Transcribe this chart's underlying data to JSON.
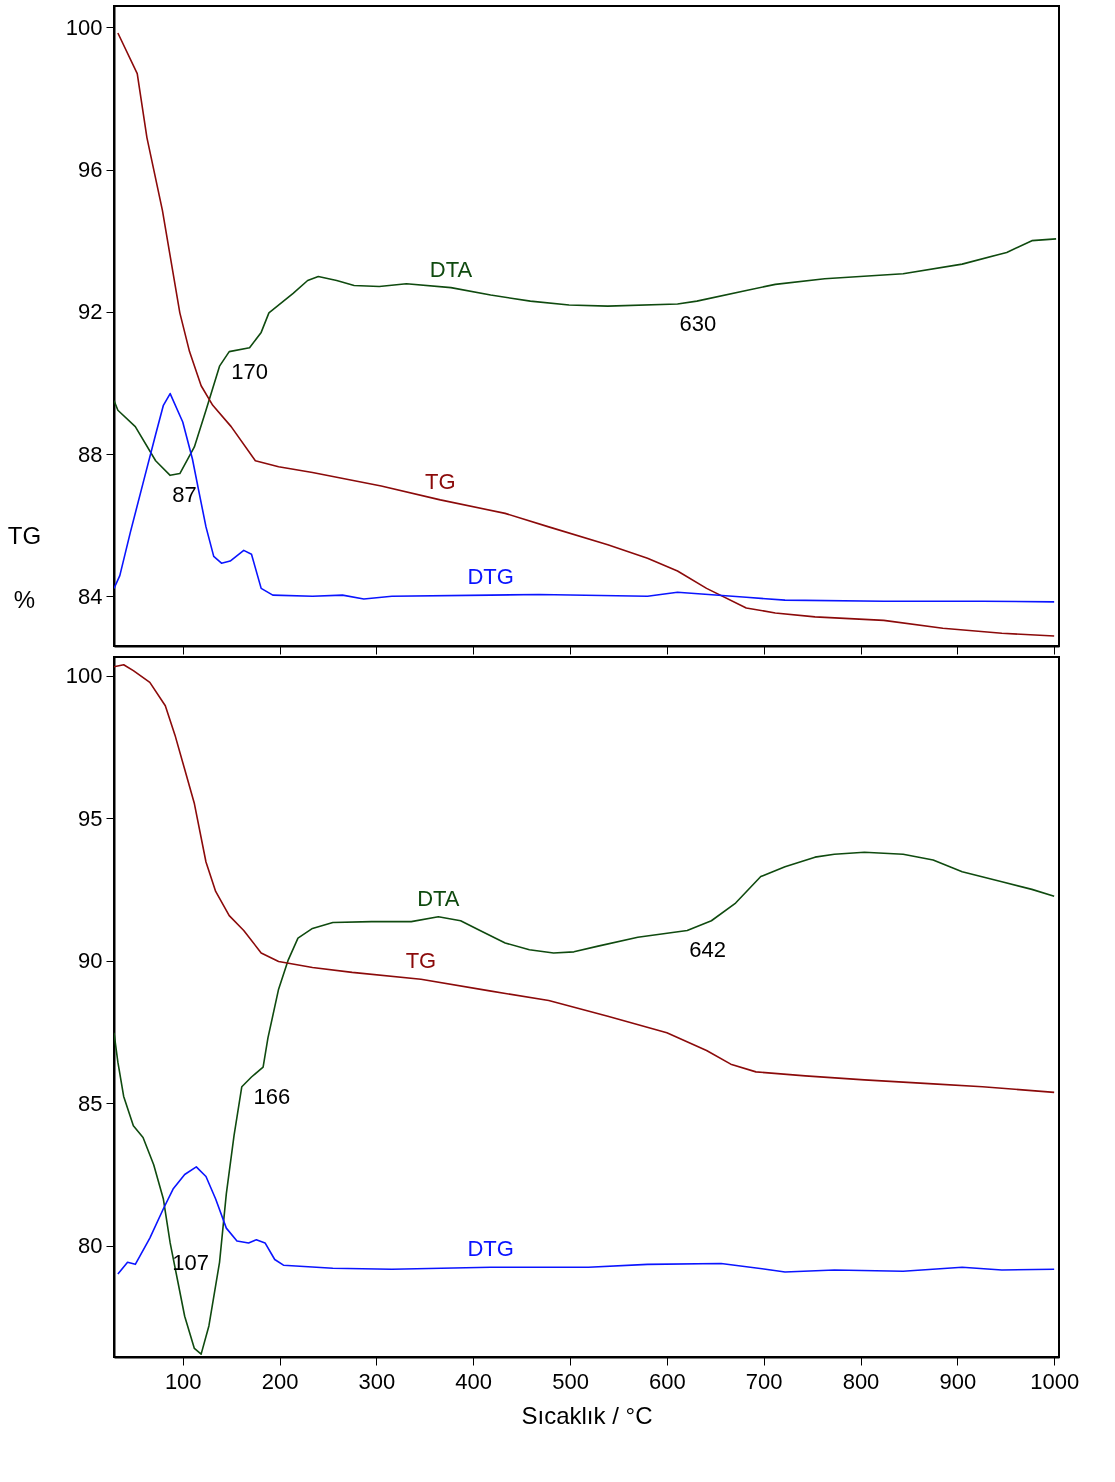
{
  "chart_data": [
    {
      "type": "line",
      "ylabel": "TG %",
      "xlim": [
        29,
        1005
      ],
      "ylim": [
        82.6,
        100.6
      ],
      "xticks": [
        100,
        200,
        300,
        400,
        500,
        600,
        700,
        800,
        900,
        1000
      ],
      "yticks": [
        84,
        88,
        92,
        96,
        100
      ],
      "tick_labels": "y",
      "series": [
        {
          "name": "DTA",
          "color": "#0f4a0f",
          "x": [
            29,
            33,
            51,
            72,
            87,
            97,
            112,
            124,
            138,
            148,
            169,
            181,
            189,
            214,
            229,
            240,
            259,
            277,
            303,
            331,
            377,
            418,
            459,
            499,
            539,
            611,
            631,
            682,
            712,
            763,
            844,
            905,
            951,
            977,
            1002
          ],
          "values": [
            89.5,
            89.23,
            88.77,
            87.81,
            87.4,
            87.45,
            88.2,
            89.23,
            90.47,
            90.88,
            90.99,
            91.42,
            91.97,
            92.52,
            92.88,
            92.99,
            92.88,
            92.74,
            92.71,
            92.79,
            92.68,
            92.47,
            92.3,
            92.19,
            92.16,
            92.22,
            92.3,
            92.6,
            92.77,
            92.93,
            93.07,
            93.34,
            93.67,
            94.0,
            94.05
          ]
        },
        {
          "name": "TG",
          "color": "#8b0a0a",
          "x": [
            33,
            53,
            63,
            79,
            97,
            107,
            119,
            131,
            150,
            175,
            199,
            234,
            305,
            366,
            433,
            478,
            539,
            580,
            611,
            641,
            682,
            712,
            753,
            824,
            885,
            946,
            1000
          ],
          "values": [
            99.84,
            98.7,
            96.9,
            94.85,
            91.97,
            90.88,
            89.92,
            89.37,
            88.77,
            87.81,
            87.64,
            87.48,
            87.1,
            86.71,
            86.33,
            85.95,
            85.45,
            85.07,
            84.71,
            84.22,
            83.67,
            83.53,
            83.42,
            83.32,
            83.1,
            82.96,
            82.88
          ]
        },
        {
          "name": "DTG",
          "color": "#0a14ff",
          "x": [
            29,
            35,
            46,
            59,
            72,
            80,
            87,
            100,
            110,
            117,
            124,
            132,
            140,
            149,
            163,
            171,
            181,
            193,
            234,
            265,
            287,
            316,
            418,
            468,
            580,
            611,
            682,
            722,
            824,
            926,
            1000
          ],
          "values": [
            84.22,
            84.58,
            85.81,
            87.18,
            88.55,
            89.37,
            89.7,
            88.9,
            87.86,
            86.9,
            85.95,
            85.12,
            84.93,
            84.99,
            85.29,
            85.18,
            84.22,
            84.03,
            84.0,
            84.03,
            83.92,
            84.0,
            84.03,
            84.05,
            84.0,
            84.11,
            83.97,
            83.89,
            83.86,
            83.86,
            83.84
          ]
        }
      ],
      "annotations": [
        {
          "text": "87",
          "x": 87,
          "y": 87.4
        },
        {
          "text": "170",
          "x": 148,
          "y": 90.88
        },
        {
          "text": "630",
          "x": 611,
          "y": 92.22
        }
      ]
    },
    {
      "type": "line",
      "xlabel": "Sıcaklık / °C",
      "xlim": [
        29,
        1005
      ],
      "ylim": [
        76.1,
        100.65
      ],
      "xticks": [
        100,
        200,
        300,
        400,
        500,
        600,
        700,
        800,
        900,
        1000
      ],
      "yticks": [
        80,
        85,
        90,
        95,
        100
      ],
      "series": [
        {
          "name": "DTA",
          "color": "#0f4a0f",
          "x": [
            29,
            33,
            39,
            49,
            59,
            70,
            80,
            87,
            95,
            102,
            112,
            119,
            127,
            138,
            145,
            153,
            161,
            171,
            183,
            188,
            199,
            209,
            219,
            234,
            255,
            295,
            336,
            364,
            387,
            407,
            433,
            458,
            483,
            504,
            529,
            570,
            621,
            646,
            671,
            697,
            722,
            753,
            773,
            804,
            844,
            875,
            905,
            946,
            977,
            1000
          ],
          "values": [
            87.47,
            86.44,
            85.24,
            84.21,
            83.8,
            82.84,
            81.64,
            80.1,
            78.73,
            77.53,
            76.4,
            76.2,
            77.19,
            79.42,
            81.82,
            83.87,
            85.58,
            85.92,
            86.27,
            87.29,
            89.0,
            90.03,
            90.79,
            91.13,
            91.34,
            91.37,
            91.37,
            91.54,
            91.4,
            91.06,
            90.62,
            90.38,
            90.27,
            90.31,
            90.51,
            90.82,
            91.06,
            91.4,
            92.02,
            92.95,
            93.29,
            93.63,
            93.73,
            93.8,
            93.73,
            93.53,
            93.12,
            92.77,
            92.5,
            92.26
          ]
        },
        {
          "name": "TG",
          "color": "#8b0a0a",
          "x": [
            29,
            39,
            49,
            66,
            82,
            92,
            102,
            112,
            124,
            134,
            148,
            163,
            181,
            199,
            234,
            275,
            346,
            417,
            478,
            539,
            600,
            641,
            666,
            692,
            743,
            804,
            875,
            926,
            1000
          ],
          "values": [
            100.31,
            100.38,
            100.17,
            99.76,
            98.94,
            97.91,
            96.71,
            95.51,
            93.46,
            92.43,
            91.58,
            91.06,
            90.27,
            89.97,
            89.76,
            89.59,
            89.35,
            88.94,
            88.6,
            88.05,
            87.47,
            86.85,
            86.37,
            86.1,
            85.96,
            85.82,
            85.68,
            85.58,
            85.38
          ]
        },
        {
          "name": "DTG",
          "color": "#0a14ff",
          "x": [
            33,
            43,
            51,
            66,
            80,
            90,
            102,
            114,
            124,
            134,
            145,
            156,
            168,
            176,
            185,
            195,
            204,
            255,
            316,
            418,
            519,
            580,
            656,
            702,
            722,
            773,
            844,
            905,
            946,
            1000
          ],
          "values": [
            79.01,
            79.42,
            79.35,
            80.27,
            81.3,
            81.99,
            82.5,
            82.77,
            82.43,
            81.64,
            80.62,
            80.17,
            80.1,
            80.21,
            80.1,
            79.52,
            79.32,
            79.21,
            79.18,
            79.25,
            79.25,
            79.35,
            79.38,
            79.18,
            79.08,
            79.15,
            79.11,
            79.25,
            79.15,
            79.18
          ]
        }
      ],
      "annotations": [
        {
          "text": "107",
          "x": 87,
          "y": 80.1
        },
        {
          "text": "166",
          "x": 171,
          "y": 85.92
        },
        {
          "text": "642",
          "x": 621,
          "y": 91.06
        }
      ]
    }
  ]
}
